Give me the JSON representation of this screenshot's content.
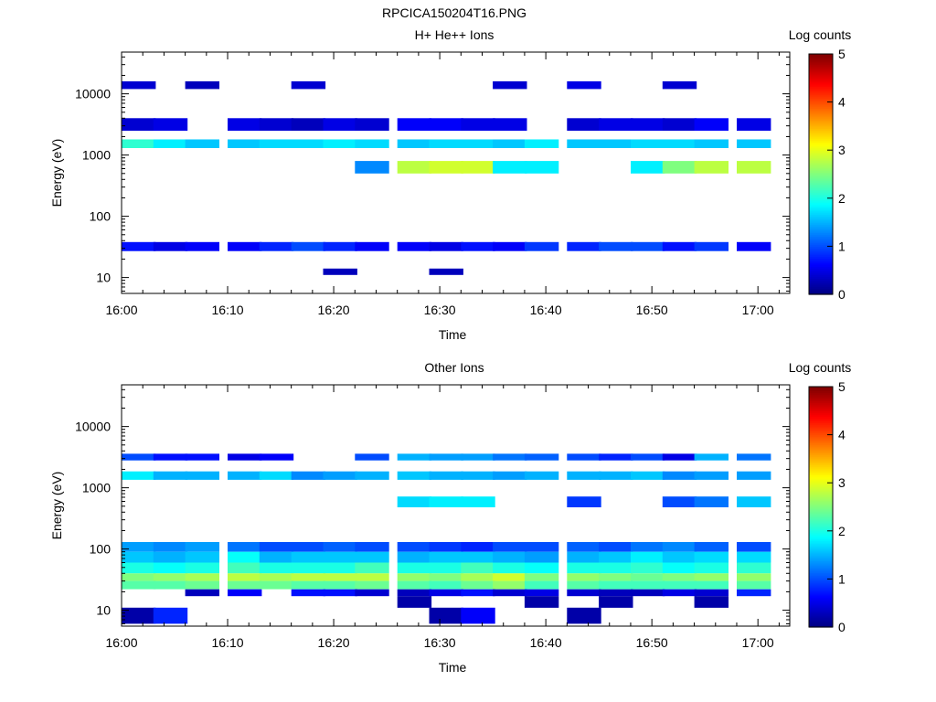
{
  "figure_title": "RPCICA150204T16.PNG",
  "colormap": [
    "#00007f",
    "#0000ff",
    "#007fff",
    "#00ffff",
    "#7fff7f",
    "#ffff00",
    "#ff7f00",
    "#ff0000",
    "#7f0000"
  ],
  "chart_data": [
    {
      "type": "heatmap",
      "title": "H+ He++ Ions",
      "xlabel": "Time",
      "ylabel": "Energy (eV)",
      "y_scale": "log",
      "ylim": [
        5.5,
        48000
      ],
      "xlim": [
        "16:00",
        "17:03"
      ],
      "x_ticks": [
        "16:00",
        "16:10",
        "16:20",
        "16:30",
        "16:40",
        "16:50",
        "17:00"
      ],
      "y_ticks": [
        "10",
        "100",
        "1000",
        "10000"
      ],
      "colorbar": {
        "label": "Log counts",
        "range": [
          0,
          5
        ],
        "ticks": [
          "0",
          "1",
          "2",
          "3",
          "4",
          "5"
        ]
      },
      "time_bins": [
        "16:00",
        "16:03",
        "16:06",
        "16:10",
        "16:13",
        "16:16",
        "16:19",
        "16:22",
        "16:26",
        "16:29",
        "16:32",
        "16:35",
        "16:38",
        "16:42",
        "16:45",
        "16:48",
        "16:51",
        "16:54",
        "16:58"
      ],
      "bands": [
        {
          "emin": 1300,
          "emax": 1800,
          "values": [
            2.1,
            1.8,
            1.6,
            1.6,
            1.7,
            1.7,
            1.8,
            1.7,
            1.6,
            1.7,
            1.7,
            1.6,
            1.8,
            1.6,
            1.6,
            1.7,
            1.7,
            1.6,
            1.6
          ]
        },
        {
          "emin": 500,
          "emax": 800,
          "values": [
            null,
            null,
            null,
            null,
            null,
            null,
            null,
            1.3,
            2.8,
            2.9,
            2.9,
            1.8,
            1.8,
            null,
            null,
            1.8,
            2.5,
            2.8,
            2.8
          ]
        },
        {
          "emin": 27,
          "emax": 38,
          "values": [
            0.7,
            0.5,
            0.6,
            0.6,
            0.8,
            1.0,
            0.8,
            0.6,
            0.6,
            0.5,
            0.7,
            0.6,
            0.9,
            0.8,
            1.0,
            1.0,
            0.7,
            0.9,
            0.6
          ]
        },
        {
          "emin": 11,
          "emax": 14,
          "values": [
            null,
            null,
            null,
            null,
            null,
            null,
            0.3,
            null,
            null,
            0.3,
            null,
            null,
            null,
            null,
            null,
            null,
            null,
            null,
            null
          ]
        },
        {
          "emin": 2500,
          "emax": 4000,
          "values": [
            0.4,
            0.5,
            null,
            0.5,
            0.4,
            0.3,
            0.5,
            0.4,
            0.6,
            0.6,
            0.5,
            0.5,
            null,
            0.4,
            0.5,
            0.5,
            0.4,
            0.6,
            0.5
          ]
        },
        {
          "emin": 12000,
          "emax": 16000,
          "values": [
            0.4,
            null,
            0.3,
            null,
            null,
            0.4,
            null,
            null,
            null,
            null,
            null,
            0.4,
            null,
            0.5,
            null,
            null,
            0.4,
            null,
            null
          ]
        }
      ]
    },
    {
      "type": "heatmap",
      "title": "Other Ions",
      "xlabel": "Time",
      "ylabel": "Energy (eV)",
      "y_scale": "log",
      "ylim": [
        5.5,
        48000
      ],
      "xlim": [
        "16:00",
        "17:03"
      ],
      "x_ticks": [
        "16:00",
        "16:10",
        "16:20",
        "16:30",
        "16:40",
        "16:50",
        "17:00"
      ],
      "y_ticks": [
        "10",
        "100",
        "1000",
        "10000"
      ],
      "colorbar": {
        "label": "Log counts",
        "range": [
          0,
          5
        ],
        "ticks": [
          "0",
          "1",
          "2",
          "3",
          "4",
          "5"
        ]
      },
      "time_bins": [
        "16:00",
        "16:03",
        "16:06",
        "16:10",
        "16:13",
        "16:16",
        "16:19",
        "16:22",
        "16:26",
        "16:29",
        "16:32",
        "16:35",
        "16:38",
        "16:42",
        "16:45",
        "16:48",
        "16:51",
        "16:54",
        "16:58"
      ],
      "bands": [
        {
          "emin": 2800,
          "emax": 3600,
          "values": [
            1.0,
            0.7,
            0.7,
            0.5,
            0.6,
            null,
            null,
            1.0,
            1.5,
            1.4,
            1.4,
            1.2,
            1.1,
            1.0,
            0.8,
            1.0,
            0.5,
            1.5,
            1.2
          ]
        },
        {
          "emin": 1350,
          "emax": 1850,
          "values": [
            1.8,
            1.5,
            1.5,
            1.5,
            1.7,
            1.3,
            1.4,
            1.5,
            1.6,
            1.5,
            1.5,
            1.4,
            1.5,
            1.5,
            1.5,
            1.6,
            1.3,
            1.4,
            1.4
          ]
        },
        {
          "emin": 480,
          "emax": 720,
          "values": [
            null,
            null,
            null,
            null,
            null,
            null,
            null,
            null,
            1.7,
            1.8,
            1.8,
            null,
            null,
            0.9,
            null,
            null,
            1.0,
            1.2,
            1.6
          ]
        },
        {
          "emin": 90,
          "emax": 130,
          "values": [
            1.4,
            1.3,
            1.4,
            1.2,
            1.0,
            1.0,
            1.1,
            1.0,
            1.0,
            0.9,
            0.8,
            1.0,
            1.0,
            1.1,
            1.0,
            1.2,
            1.3,
            1.1,
            1.0
          ]
        },
        {
          "emin": 60,
          "emax": 90,
          "values": [
            1.6,
            1.5,
            1.6,
            1.9,
            1.5,
            1.6,
            1.6,
            1.6,
            1.5,
            1.6,
            1.6,
            1.5,
            1.4,
            1.5,
            1.6,
            1.8,
            1.6,
            1.7,
            1.7
          ]
        },
        {
          "emin": 40,
          "emax": 60,
          "values": [
            2.0,
            1.9,
            2.0,
            2.2,
            2.0,
            2.0,
            2.0,
            2.2,
            2.0,
            2.0,
            2.2,
            2.0,
            1.9,
            2.0,
            2.0,
            2.1,
            1.9,
            2.0,
            2.1
          ]
        },
        {
          "emin": 30,
          "emax": 40,
          "values": [
            2.5,
            2.6,
            2.7,
            2.8,
            2.7,
            2.8,
            2.8,
            2.8,
            2.6,
            2.5,
            2.7,
            2.9,
            2.5,
            2.6,
            2.5,
            2.4,
            2.5,
            2.6,
            2.6
          ]
        },
        {
          "emin": 22,
          "emax": 30,
          "values": [
            2.3,
            2.3,
            2.4,
            2.4,
            2.4,
            2.3,
            2.3,
            2.4,
            2.3,
            2.2,
            2.4,
            2.6,
            2.2,
            2.3,
            2.2,
            2.2,
            2.2,
            2.2,
            2.3
          ]
        },
        {
          "emin": 17,
          "emax": 22,
          "values": [
            null,
            null,
            0.3,
            0.6,
            null,
            0.7,
            0.7,
            0.4,
            0.3,
            0.5,
            0.7,
            0.4,
            0.5,
            0.4,
            0.3,
            0.3,
            0.5,
            0.4,
            0.8
          ]
        },
        {
          "emin": 11,
          "emax": 17,
          "values": [
            null,
            null,
            null,
            null,
            null,
            null,
            null,
            null,
            0.2,
            null,
            null,
            null,
            0.2,
            null,
            0.2,
            null,
            null,
            0.2,
            null
          ]
        },
        {
          "emin": 6,
          "emax": 11,
          "values": [
            0.2,
            0.8,
            null,
            null,
            null,
            null,
            null,
            null,
            null,
            0.2,
            0.6,
            null,
            null,
            0.2,
            null,
            null,
            null,
            null,
            null
          ]
        }
      ]
    }
  ]
}
